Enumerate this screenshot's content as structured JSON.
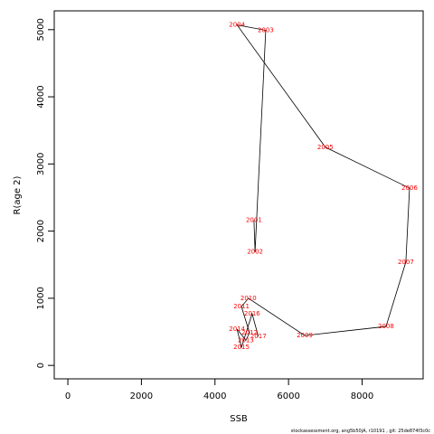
{
  "chart_data": {
    "type": "line",
    "xlabel": "SSB",
    "ylabel": "R(age 2)",
    "footer": "stockassessment.org, ang5b50jA, r10191 , git: 25de874f3c0c",
    "x": [
      5060,
      5090,
      5380,
      4600,
      7000,
      9290,
      9190,
      8650,
      6440,
      4910,
      4720,
      4940,
      4840,
      4600,
      4720,
      5010,
      5180
    ],
    "values": [
      2160,
      1690,
      4990,
      5070,
      3250,
      2640,
      1540,
      580,
      445,
      1000,
      875,
      485,
      375,
      540,
      270,
      770,
      430
    ],
    "labels": [
      "2001",
      "2002",
      "2003",
      "2004",
      "2005",
      "2006",
      "2007",
      "2008",
      "2009",
      "2010",
      "2011",
      "2012",
      "2013",
      "2014",
      "2015",
      "2016",
      "2017"
    ],
    "color": "#000000",
    "label_color": "#ff0000",
    "xlim": [
      -370,
      9660
    ],
    "ylim": [
      -200,
      5280
    ],
    "xticks": [
      0,
      2000,
      4000,
      6000,
      8000
    ],
    "yticks": [
      0,
      1000,
      2000,
      3000,
      4000,
      5000
    ]
  }
}
